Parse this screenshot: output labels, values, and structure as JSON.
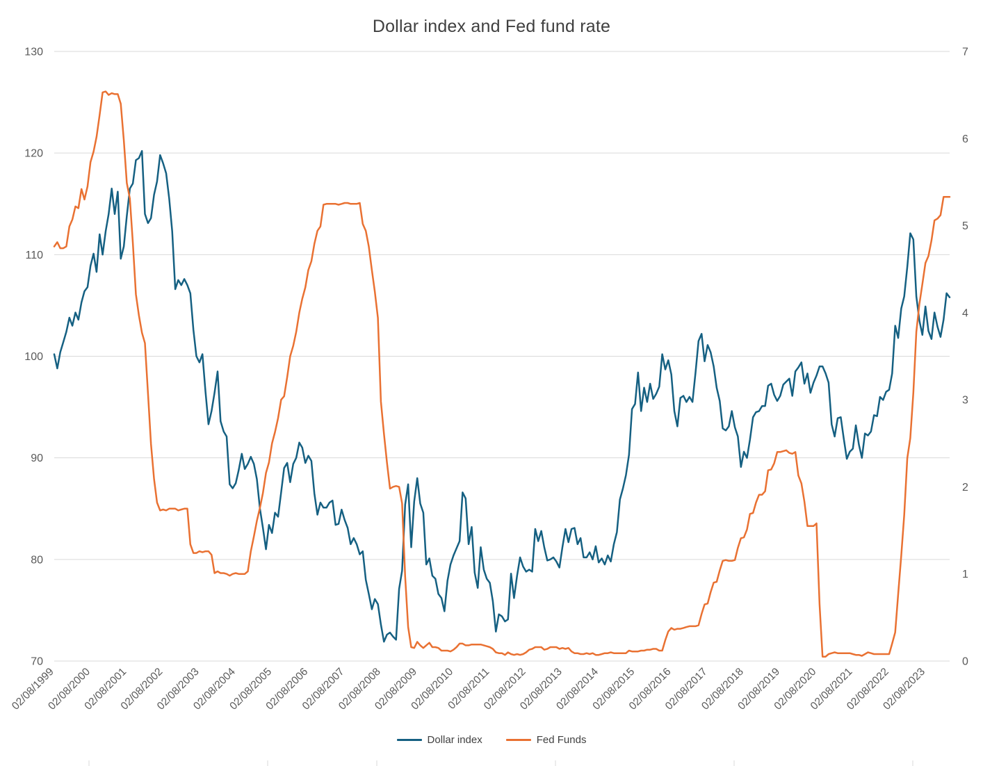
{
  "chart_title": "Dollar index and Fed fund rate",
  "style": {
    "grid_color": "#d9d9d9",
    "axis_text_color": "#595959",
    "title_color": "#3f3f3f",
    "background": "#ffffff"
  },
  "chart_data": {
    "type": "line",
    "title": "Dollar index and Fed fund rate",
    "grid": "horizontal",
    "legend_position": "bottom",
    "x_start": "02/08/1999",
    "x_interval": "monthly",
    "x_tick_labels": [
      "02/08/1999",
      "02/08/2000",
      "02/08/2001",
      "02/08/2002",
      "02/08/2003",
      "02/08/2004",
      "02/08/2005",
      "02/08/2006",
      "02/08/2007",
      "02/08/2008",
      "02/08/2009",
      "02/08/2010",
      "02/08/2011",
      "02/08/2012",
      "02/08/2013",
      "02/08/2014",
      "02/08/2015",
      "02/08/2016",
      "02/08/2017",
      "02/08/2018",
      "02/08/2019",
      "02/08/2020",
      "02/08/2021",
      "02/08/2022",
      "02/08/2023"
    ],
    "x_tick_month_indices": [
      0,
      12,
      24,
      36,
      48,
      60,
      72,
      84,
      96,
      108,
      120,
      132,
      144,
      156,
      168,
      180,
      192,
      204,
      216,
      228,
      240,
      252,
      264,
      276,
      288
    ],
    "left_axis": {
      "min": 70,
      "max": 130,
      "ticks": [
        70,
        80,
        90,
        100,
        110,
        120,
        130
      ],
      "series": "Dollar index"
    },
    "right_axis": {
      "min": 0,
      "max": 7,
      "ticks": [
        0,
        1,
        2,
        3,
        4,
        5,
        6,
        7
      ],
      "series": "Fed Funds"
    },
    "series": [
      {
        "name": "Dollar index",
        "axis": "left",
        "color": "#156082",
        "values": [
          100.2,
          98.8,
          100.4,
          101.4,
          102.4,
          103.8,
          103.0,
          104.3,
          103.6,
          105.3,
          106.4,
          106.8,
          108.9,
          110.1,
          108.3,
          112.0,
          110.0,
          112.3,
          114.0,
          116.5,
          114.0,
          116.2,
          109.6,
          110.8,
          113.8,
          116.5,
          117.0,
          119.3,
          119.5,
          120.2,
          114.0,
          113.1,
          113.6,
          115.9,
          117.2,
          119.8,
          119.0,
          118.0,
          115.5,
          112.3,
          106.6,
          107.5,
          107.0,
          107.6,
          107.0,
          106.2,
          102.6,
          100.0,
          99.4,
          100.2,
          96.5,
          93.3,
          94.6,
          96.4,
          98.5,
          93.6,
          92.6,
          92.1,
          87.4,
          87.0,
          87.5,
          88.8,
          90.4,
          88.9,
          89.4,
          90.1,
          89.4,
          87.9,
          85.0,
          83.1,
          81.0,
          83.4,
          82.6,
          84.6,
          84.2,
          86.6,
          89.0,
          89.5,
          87.6,
          89.4,
          90.0,
          91.5,
          91.0,
          89.5,
          90.2,
          89.7,
          86.5,
          84.4,
          85.6,
          85.1,
          85.1,
          85.6,
          85.8,
          83.4,
          83.5,
          84.9,
          83.9,
          83.1,
          81.5,
          82.1,
          81.5,
          80.5,
          80.8,
          78.0,
          76.6,
          75.1,
          76.1,
          75.6,
          73.6,
          71.9,
          72.6,
          72.8,
          72.4,
          72.1,
          77.1,
          78.9,
          85.4,
          87.4,
          81.2,
          85.7,
          88.0,
          85.5,
          84.6,
          79.5,
          80.1,
          78.4,
          78.1,
          76.6,
          76.2,
          74.9,
          77.9,
          79.5,
          80.4,
          81.1,
          81.8,
          86.6,
          86.0,
          81.5,
          83.2,
          78.7,
          77.2,
          81.2,
          79.0,
          78.1,
          77.7,
          75.9,
          72.9,
          74.6,
          74.4,
          73.9,
          74.1,
          78.6,
          76.2,
          78.4,
          80.2,
          79.3,
          78.8,
          79.0,
          78.8,
          83.0,
          81.8,
          82.8,
          81.2,
          79.9,
          80.0,
          80.2,
          79.8,
          79.2,
          81.2,
          83.0,
          81.7,
          83.0,
          83.1,
          81.5,
          82.1,
          80.2,
          80.2,
          80.7,
          80.0,
          81.3,
          79.7,
          80.1,
          79.5,
          80.4,
          79.8,
          81.5,
          82.7,
          85.9,
          87.0,
          88.3,
          90.3,
          94.8,
          95.3,
          98.4,
          94.6,
          96.9,
          95.5,
          97.3,
          95.8,
          96.3,
          97.0,
          100.2,
          98.7,
          99.6,
          98.2,
          94.6,
          93.1,
          95.9,
          96.1,
          95.5,
          96.0,
          95.5,
          98.4,
          101.5,
          102.2,
          99.5,
          101.1,
          100.4,
          99.0,
          96.9,
          95.6,
          92.9,
          92.7,
          93.1,
          94.6,
          93.0,
          92.1,
          89.1,
          90.6,
          90.0,
          91.8,
          94.0,
          94.5,
          94.6,
          95.1,
          95.1,
          97.1,
          97.3,
          96.2,
          95.6,
          96.1,
          97.2,
          97.5,
          97.8,
          96.1,
          98.5,
          98.9,
          99.4,
          97.3,
          98.3,
          96.4,
          97.4,
          98.1,
          99.0,
          99.0,
          98.3,
          97.4,
          93.3,
          92.1,
          93.9,
          94.0,
          91.9,
          89.9,
          90.6,
          90.9,
          93.2,
          91.3,
          90.0,
          92.4,
          92.2,
          92.6,
          94.2,
          94.1,
          96.0,
          95.7,
          96.5,
          96.7,
          98.3,
          103.0,
          101.8,
          104.7,
          105.9,
          108.8,
          112.1,
          111.5,
          105.9,
          103.5,
          102.1,
          104.9,
          102.5,
          101.7,
          104.3,
          102.9,
          101.9,
          103.6,
          106.2,
          105.8
        ]
      },
      {
        "name": "Fed Funds",
        "axis": "right",
        "color": "#e97132",
        "values": [
          4.76,
          4.81,
          4.74,
          4.74,
          4.76,
          4.99,
          5.07,
          5.22,
          5.2,
          5.42,
          5.3,
          5.45,
          5.73,
          5.85,
          6.02,
          6.27,
          6.53,
          6.54,
          6.5,
          6.52,
          6.51,
          6.51,
          6.4,
          5.98,
          5.49,
          5.31,
          4.8,
          4.21,
          3.97,
          3.77,
          3.65,
          3.07,
          2.49,
          2.09,
          1.82,
          1.73,
          1.74,
          1.73,
          1.75,
          1.75,
          1.75,
          1.73,
          1.74,
          1.75,
          1.75,
          1.34,
          1.24,
          1.24,
          1.26,
          1.25,
          1.26,
          1.26,
          1.22,
          1.01,
          1.03,
          1.01,
          1.01,
          1.0,
          0.98,
          1.0,
          1.01,
          1.0,
          1.0,
          1.0,
          1.03,
          1.26,
          1.43,
          1.61,
          1.76,
          1.93,
          2.16,
          2.28,
          2.5,
          2.63,
          2.79,
          3.0,
          3.04,
          3.26,
          3.5,
          3.62,
          3.78,
          4.0,
          4.16,
          4.29,
          4.49,
          4.59,
          4.79,
          4.94,
          4.99,
          5.24,
          5.25,
          5.25,
          5.25,
          5.25,
          5.24,
          5.25,
          5.26,
          5.26,
          5.25,
          5.25,
          5.25,
          5.26,
          5.02,
          4.94,
          4.76,
          4.49,
          4.24,
          3.94,
          2.98,
          2.61,
          2.28,
          1.98,
          2.0,
          2.01,
          2.0,
          1.81,
          0.97,
          0.39,
          0.16,
          0.15,
          0.22,
          0.18,
          0.15,
          0.18,
          0.21,
          0.16,
          0.16,
          0.15,
          0.12,
          0.12,
          0.12,
          0.11,
          0.13,
          0.16,
          0.2,
          0.2,
          0.18,
          0.18,
          0.19,
          0.19,
          0.19,
          0.19,
          0.18,
          0.17,
          0.16,
          0.14,
          0.1,
          0.09,
          0.09,
          0.07,
          0.1,
          0.08,
          0.07,
          0.08,
          0.07,
          0.08,
          0.1,
          0.13,
          0.14,
          0.16,
          0.16,
          0.16,
          0.13,
          0.14,
          0.16,
          0.16,
          0.16,
          0.14,
          0.15,
          0.14,
          0.15,
          0.11,
          0.09,
          0.09,
          0.08,
          0.08,
          0.09,
          0.08,
          0.09,
          0.07,
          0.07,
          0.08,
          0.09,
          0.09,
          0.1,
          0.09,
          0.09,
          0.09,
          0.09,
          0.09,
          0.12,
          0.11,
          0.11,
          0.11,
          0.12,
          0.12,
          0.13,
          0.13,
          0.14,
          0.14,
          0.12,
          0.12,
          0.24,
          0.34,
          0.38,
          0.36,
          0.37,
          0.37,
          0.38,
          0.39,
          0.4,
          0.4,
          0.4,
          0.41,
          0.54,
          0.65,
          0.66,
          0.79,
          0.9,
          0.91,
          1.04,
          1.15,
          1.16,
          1.15,
          1.15,
          1.16,
          1.3,
          1.41,
          1.42,
          1.51,
          1.69,
          1.7,
          1.82,
          1.91,
          1.91,
          1.95,
          2.19,
          2.2,
          2.27,
          2.4,
          2.4,
          2.41,
          2.42,
          2.39,
          2.38,
          2.4,
          2.13,
          2.04,
          1.83,
          1.55,
          1.55,
          1.55,
          1.58,
          0.65,
          0.05,
          0.05,
          0.08,
          0.09,
          0.1,
          0.09,
          0.09,
          0.09,
          0.09,
          0.09,
          0.08,
          0.07,
          0.07,
          0.06,
          0.08,
          0.1,
          0.09,
          0.08,
          0.08,
          0.08,
          0.08,
          0.08,
          0.08,
          0.2,
          0.33,
          0.77,
          1.21,
          1.68,
          2.33,
          2.56,
          3.08,
          3.78,
          4.1,
          4.33,
          4.57,
          4.65,
          4.83,
          5.06,
          5.08,
          5.12,
          5.33,
          5.33,
          5.33
        ]
      }
    ],
    "legend": [
      {
        "label": "Dollar index"
      },
      {
        "label": "Fed Funds"
      }
    ]
  }
}
